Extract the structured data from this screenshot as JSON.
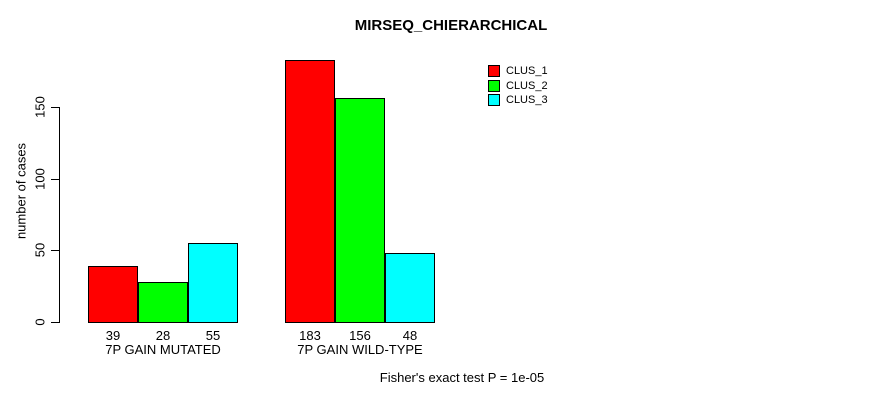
{
  "chart_data": {
    "type": "bar",
    "title": "MIRSEQ_CHIERARCHICAL",
    "ylabel": "number of cases",
    "xlabel": "",
    "ylim": [
      0,
      190
    ],
    "yticks": [
      0,
      50,
      100,
      150
    ],
    "categories": [
      "7P GAIN MUTATED",
      "7P GAIN WILD-TYPE"
    ],
    "series": [
      {
        "name": "CLUS_1",
        "color": "#ff0000",
        "values": [
          39,
          183
        ]
      },
      {
        "name": "CLUS_2",
        "color": "#00ff00",
        "values": [
          28,
          156
        ]
      },
      {
        "name": "CLUS_3",
        "color": "#00ffff",
        "values": [
          48,
          48
        ]
      }
    ],
    "grid": false,
    "legend_position": "top-right",
    "bar_value_labels_shown": true,
    "annotation": "Fisher's exact test P = 1e-05"
  }
}
